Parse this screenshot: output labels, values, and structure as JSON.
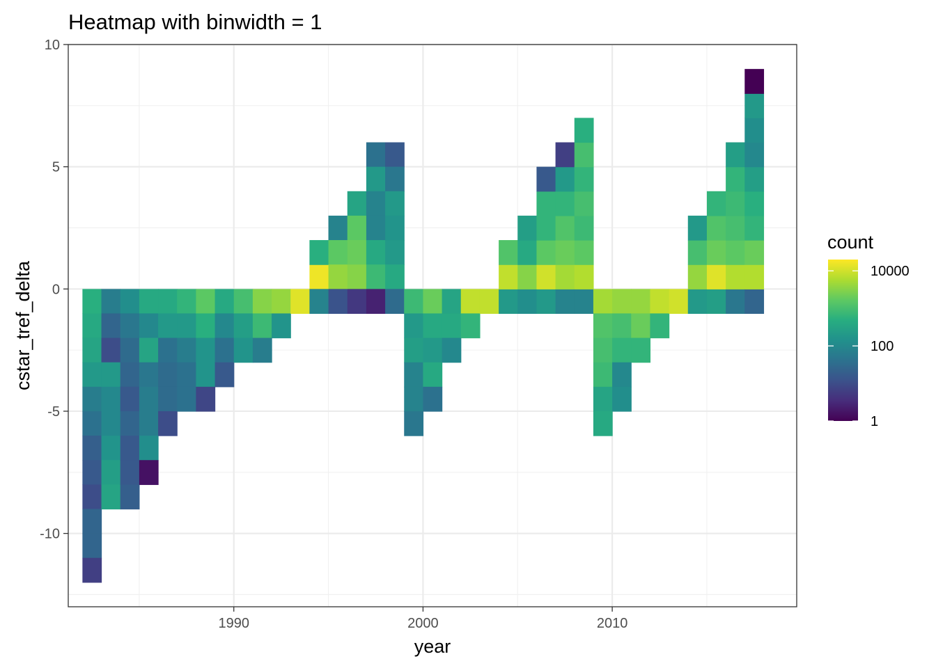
{
  "chart_data": {
    "type": "heatmap",
    "title": "Heatmap with binwidth = 1",
    "xlabel": "year",
    "ylabel": "cstar_tref_delta",
    "xlim": [
      1981.25,
      2019.75
    ],
    "ylim": [
      -13,
      10
    ],
    "x_ticks": [
      {
        "value": 1990,
        "label": "1990"
      },
      {
        "value": 2000,
        "label": "2000"
      },
      {
        "value": 2010,
        "label": "2010"
      }
    ],
    "x_minor": [
      1985,
      1995,
      2005,
      2015
    ],
    "y_ticks": [
      {
        "value": 10,
        "label": "10"
      },
      {
        "value": 5,
        "label": "5"
      },
      {
        "value": 0,
        "label": "0"
      },
      {
        "value": -5,
        "label": "-5"
      },
      {
        "value": -10,
        "label": "-10"
      }
    ],
    "y_minor": [
      7.5,
      2.5,
      -2.5,
      -7.5,
      -12.5
    ],
    "grid": true,
    "bin_width": 1,
    "color_scale": "viridis",
    "color_transform": "log10",
    "legend": {
      "title": "count",
      "position": "right",
      "min_count": 1,
      "max_count": 20000,
      "ticks": [
        {
          "value": 10000,
          "label": "10000"
        },
        {
          "value": 100,
          "label": "100"
        },
        {
          "value": 1,
          "label": "1"
        }
      ]
    },
    "bins_note": "each row: [year bin center, cstar_tref_delta bin center, log10 count]",
    "bins": [
      [
        1982.5,
        -0.5,
        2.7
      ],
      [
        1982.5,
        -1.5,
        2.6
      ],
      [
        1982.5,
        -2.5,
        2.5
      ],
      [
        1982.5,
        -3.5,
        2.3
      ],
      [
        1982.5,
        -4.5,
        1.8
      ],
      [
        1982.5,
        -5.5,
        1.6
      ],
      [
        1982.5,
        -6.5,
        1.3
      ],
      [
        1982.5,
        -7.5,
        1.2
      ],
      [
        1982.5,
        -8.5,
        1.0
      ],
      [
        1982.5,
        -9.5,
        1.4
      ],
      [
        1982.5,
        -10.5,
        1.4
      ],
      [
        1982.5,
        -11.5,
        0.8
      ],
      [
        1983.5,
        -0.5,
        1.8
      ],
      [
        1983.5,
        -1.5,
        1.4
      ],
      [
        1983.5,
        -2.5,
        1.0
      ],
      [
        1983.5,
        -3.5,
        2.3
      ],
      [
        1983.5,
        -4.5,
        2.0
      ],
      [
        1983.5,
        -5.5,
        2.0
      ],
      [
        1983.5,
        -6.5,
        2.2
      ],
      [
        1983.5,
        -7.5,
        2.4
      ],
      [
        1983.5,
        -8.5,
        2.5
      ],
      [
        1984.5,
        -0.5,
        2.1
      ],
      [
        1984.5,
        -1.5,
        1.7
      ],
      [
        1984.5,
        -2.5,
        1.5
      ],
      [
        1984.5,
        -3.5,
        1.4
      ],
      [
        1984.5,
        -4.5,
        1.2
      ],
      [
        1984.5,
        -5.5,
        1.4
      ],
      [
        1984.5,
        -6.5,
        1.2
      ],
      [
        1984.5,
        -7.5,
        1.2
      ],
      [
        1984.5,
        -8.5,
        1.3
      ],
      [
        1985.5,
        -0.5,
        2.6
      ],
      [
        1985.5,
        -1.5,
        2.0
      ],
      [
        1985.5,
        -2.5,
        2.5
      ],
      [
        1985.5,
        -3.5,
        1.7
      ],
      [
        1985.5,
        -4.5,
        1.8
      ],
      [
        1985.5,
        -5.5,
        1.8
      ],
      [
        1985.5,
        -6.5,
        2.1
      ],
      [
        1985.5,
        -7.5,
        0.2
      ],
      [
        1986.5,
        -0.5,
        2.6
      ],
      [
        1986.5,
        -1.5,
        2.3
      ],
      [
        1986.5,
        -2.5,
        1.6
      ],
      [
        1986.5,
        -3.5,
        1.5
      ],
      [
        1986.5,
        -4.5,
        1.5
      ],
      [
        1986.5,
        -5.5,
        1.0
      ],
      [
        1987.5,
        -0.5,
        2.8
      ],
      [
        1987.5,
        -1.5,
        2.3
      ],
      [
        1987.5,
        -2.5,
        1.8
      ],
      [
        1987.5,
        -3.5,
        1.6
      ],
      [
        1987.5,
        -4.5,
        1.6
      ],
      [
        1988.5,
        -0.5,
        3.2
      ],
      [
        1988.5,
        -1.5,
        2.7
      ],
      [
        1988.5,
        -2.5,
        2.2
      ],
      [
        1988.5,
        -3.5,
        2.2
      ],
      [
        1988.5,
        -4.5,
        0.9
      ],
      [
        1989.5,
        -0.5,
        2.6
      ],
      [
        1989.5,
        -1.5,
        2.0
      ],
      [
        1989.5,
        -2.5,
        1.6
      ],
      [
        1989.5,
        -3.5,
        1.2
      ],
      [
        1990.5,
        -0.5,
        3.0
      ],
      [
        1990.5,
        -1.5,
        2.4
      ],
      [
        1990.5,
        -2.5,
        2.2
      ],
      [
        1991.5,
        -0.5,
        3.5
      ],
      [
        1991.5,
        -1.5,
        2.9
      ],
      [
        1991.5,
        -2.5,
        1.8
      ],
      [
        1992.5,
        -0.5,
        3.6
      ],
      [
        1992.5,
        -1.5,
        2.2
      ],
      [
        1993.5,
        -0.5,
        4.1
      ],
      [
        1994.5,
        0.5,
        4.2
      ],
      [
        1994.5,
        1.5,
        2.7
      ],
      [
        1994.5,
        -0.5,
        1.9
      ],
      [
        1995.5,
        2.5,
        1.9
      ],
      [
        1995.5,
        1.5,
        3.2
      ],
      [
        1995.5,
        0.5,
        3.6
      ],
      [
        1995.5,
        -0.5,
        1.1
      ],
      [
        1996.5,
        3.5,
        2.5
      ],
      [
        1996.5,
        2.5,
        3.2
      ],
      [
        1996.5,
        1.5,
        3.3
      ],
      [
        1996.5,
        0.5,
        3.5
      ],
      [
        1996.5,
        -0.5,
        0.7
      ],
      [
        1997.5,
        5.5,
        1.6
      ],
      [
        1997.5,
        4.5,
        2.3
      ],
      [
        1997.5,
        3.5,
        1.9
      ],
      [
        1997.5,
        2.5,
        1.9
      ],
      [
        1997.5,
        1.5,
        2.6
      ],
      [
        1997.5,
        0.5,
        2.9
      ],
      [
        1997.5,
        -0.5,
        0.4
      ],
      [
        1998.5,
        5.5,
        1.2
      ],
      [
        1998.5,
        4.5,
        1.7
      ],
      [
        1998.5,
        3.5,
        2.3
      ],
      [
        1998.5,
        2.5,
        2.2
      ],
      [
        1998.5,
        1.5,
        2.3
      ],
      [
        1998.5,
        0.5,
        2.6
      ],
      [
        1998.5,
        -0.5,
        1.5
      ],
      [
        1999.5,
        -0.5,
        2.9
      ],
      [
        1999.5,
        -1.5,
        2.3
      ],
      [
        1999.5,
        -2.5,
        2.4
      ],
      [
        1999.5,
        -3.5,
        1.9
      ],
      [
        1999.5,
        -4.5,
        1.9
      ],
      [
        1999.5,
        -5.5,
        1.7
      ],
      [
        2000.5,
        -0.5,
        3.3
      ],
      [
        2000.5,
        -1.5,
        2.6
      ],
      [
        2000.5,
        -2.5,
        2.3
      ],
      [
        2000.5,
        -3.5,
        2.6
      ],
      [
        2000.5,
        -4.5,
        1.6
      ],
      [
        2001.5,
        -0.5,
        2.5
      ],
      [
        2001.5,
        -1.5,
        2.6
      ],
      [
        2001.5,
        -2.5,
        2.0
      ],
      [
        2002.5,
        -0.5,
        3.9
      ],
      [
        2002.5,
        -1.5,
        2.8
      ],
      [
        2003.5,
        -0.5,
        3.9
      ],
      [
        2004.5,
        -0.5,
        2.3
      ],
      [
        2004.5,
        0.5,
        3.9
      ],
      [
        2004.5,
        1.5,
        3.1
      ],
      [
        2005.5,
        -0.5,
        2.1
      ],
      [
        2005.5,
        0.5,
        3.5
      ],
      [
        2005.5,
        1.5,
        2.6
      ],
      [
        2005.5,
        2.5,
        2.4
      ],
      [
        2006.5,
        -0.5,
        2.3
      ],
      [
        2006.5,
        0.5,
        4.0
      ],
      [
        2006.5,
        1.5,
        3.2
      ],
      [
        2006.5,
        2.5,
        2.8
      ],
      [
        2006.5,
        3.5,
        2.8
      ],
      [
        2006.5,
        4.5,
        1.2
      ],
      [
        2007.5,
        -0.5,
        1.9
      ],
      [
        2007.5,
        0.5,
        3.7
      ],
      [
        2007.5,
        1.5,
        3.3
      ],
      [
        2007.5,
        2.5,
        3.1
      ],
      [
        2007.5,
        3.5,
        2.8
      ],
      [
        2007.5,
        4.5,
        2.3
      ],
      [
        2007.5,
        5.5,
        0.8
      ],
      [
        2008.5,
        -0.5,
        1.9
      ],
      [
        2008.5,
        0.5,
        3.8
      ],
      [
        2008.5,
        1.5,
        3.2
      ],
      [
        2008.5,
        2.5,
        2.9
      ],
      [
        2008.5,
        3.5,
        3.0
      ],
      [
        2008.5,
        4.5,
        2.8
      ],
      [
        2008.5,
        5.5,
        3.0
      ],
      [
        2008.5,
        6.5,
        2.7
      ],
      [
        2009.5,
        -0.5,
        3.7
      ],
      [
        2009.5,
        -1.5,
        3.1
      ],
      [
        2009.5,
        -2.5,
        3.0
      ],
      [
        2009.5,
        -3.5,
        2.9
      ],
      [
        2009.5,
        -4.5,
        2.5
      ],
      [
        2009.5,
        -5.5,
        2.6
      ],
      [
        2010.5,
        -0.5,
        3.6
      ],
      [
        2010.5,
        -1.5,
        3.0
      ],
      [
        2010.5,
        -2.5,
        2.8
      ],
      [
        2010.5,
        -3.5,
        2.0
      ],
      [
        2010.5,
        -4.5,
        2.1
      ],
      [
        2011.5,
        -0.5,
        3.6
      ],
      [
        2011.5,
        -1.5,
        3.3
      ],
      [
        2011.5,
        -2.5,
        2.8
      ],
      [
        2012.5,
        -0.5,
        3.9
      ],
      [
        2012.5,
        -1.5,
        2.8
      ],
      [
        2013.5,
        -0.5,
        4.0
      ],
      [
        2014.5,
        -0.5,
        2.3
      ],
      [
        2014.5,
        0.5,
        3.6
      ],
      [
        2014.5,
        1.5,
        3.0
      ],
      [
        2014.5,
        2.5,
        2.3
      ],
      [
        2015.5,
        -0.5,
        2.4
      ],
      [
        2015.5,
        0.5,
        4.1
      ],
      [
        2015.5,
        1.5,
        3.3
      ],
      [
        2015.5,
        2.5,
        3.1
      ],
      [
        2015.5,
        3.5,
        2.8
      ],
      [
        2016.5,
        -0.5,
        1.7
      ],
      [
        2016.5,
        0.5,
        3.8
      ],
      [
        2016.5,
        1.5,
        3.2
      ],
      [
        2016.5,
        2.5,
        3.0
      ],
      [
        2016.5,
        3.5,
        2.9
      ],
      [
        2016.5,
        4.5,
        2.8
      ],
      [
        2016.5,
        5.5,
        2.4
      ],
      [
        2017.5,
        -0.5,
        1.4
      ],
      [
        2017.5,
        0.5,
        3.8
      ],
      [
        2017.5,
        1.5,
        3.3
      ],
      [
        2017.5,
        2.5,
        2.8
      ],
      [
        2017.5,
        3.5,
        2.7
      ],
      [
        2017.5,
        4.5,
        2.4
      ],
      [
        2017.5,
        5.5,
        2.0
      ],
      [
        2017.5,
        6.5,
        2.1
      ],
      [
        2017.5,
        7.5,
        2.3
      ],
      [
        2017.5,
        8.5,
        0.0
      ]
    ]
  }
}
